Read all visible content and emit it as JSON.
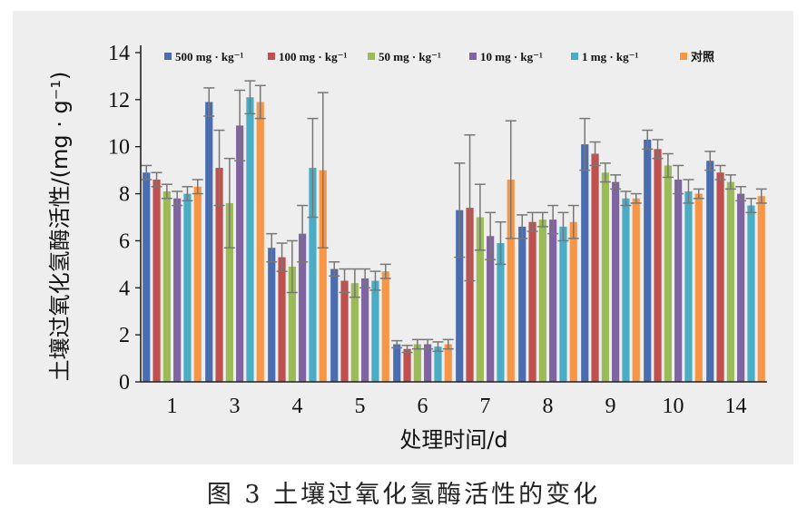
{
  "figure": {
    "caption": "图 3   土壤过氧化氢酶活性的变化"
  },
  "chart_data": {
    "type": "bar",
    "xlabel": "处理时间/d",
    "ylabel": "土壤过氧化氢酶活性/(mg · g⁻¹)",
    "ylim": [
      0,
      14
    ],
    "yticks": [
      0,
      2,
      4,
      6,
      8,
      10,
      12,
      14
    ],
    "categories": [
      "1",
      "3",
      "4",
      "5",
      "6",
      "7",
      "8",
      "9",
      "10",
      "14"
    ],
    "grid": false,
    "legend_position": "top",
    "error_bars": true,
    "series": [
      {
        "name": "500 mg · kg⁻¹",
        "color": "#4a6db0",
        "values": [
          8.9,
          11.9,
          5.7,
          4.8,
          1.6,
          7.3,
          6.6,
          10.1,
          10.3,
          9.4
        ],
        "errors": [
          0.3,
          0.6,
          0.6,
          0.3,
          0.15,
          2.0,
          0.5,
          1.1,
          0.4,
          0.4
        ]
      },
      {
        "name": "100 mg · kg⁻¹",
        "color": "#c0504d",
        "values": [
          8.6,
          9.1,
          5.3,
          4.3,
          1.4,
          7.4,
          6.8,
          9.7,
          9.9,
          8.9
        ],
        "errors": [
          0.3,
          1.6,
          0.6,
          0.5,
          0.15,
          3.1,
          0.4,
          0.5,
          0.4,
          0.3
        ]
      },
      {
        "name": "50 mg · kg⁻¹",
        "color": "#9bbb59",
        "values": [
          8.1,
          7.6,
          4.9,
          4.2,
          1.6,
          7.0,
          6.9,
          8.9,
          9.2,
          8.5
        ],
        "errors": [
          0.3,
          1.9,
          1.1,
          0.6,
          0.2,
          1.4,
          0.3,
          0.4,
          0.5,
          0.3
        ]
      },
      {
        "name": "10 mg · kg⁻¹",
        "color": "#8064a2",
        "values": [
          7.8,
          10.9,
          6.3,
          4.4,
          1.6,
          6.2,
          6.9,
          8.5,
          8.6,
          8.0
        ],
        "errors": [
          0.3,
          1.5,
          1.2,
          0.4,
          0.2,
          1.0,
          0.6,
          0.3,
          0.6,
          0.3
        ]
      },
      {
        "name": "1 mg · kg⁻¹",
        "color": "#4bacc6",
        "values": [
          8.0,
          12.1,
          9.1,
          4.3,
          1.5,
          5.9,
          6.6,
          7.8,
          8.1,
          7.5
        ],
        "errors": [
          0.3,
          0.7,
          2.1,
          0.4,
          0.2,
          0.9,
          0.6,
          0.3,
          0.5,
          0.3
        ]
      },
      {
        "name": "对照",
        "color": "#f79646",
        "values": [
          8.3,
          11.9,
          9.0,
          4.7,
          1.6,
          8.6,
          6.8,
          7.8,
          8.0,
          7.9
        ],
        "errors": [
          0.3,
          0.7,
          3.3,
          0.3,
          0.2,
          2.5,
          0.7,
          0.2,
          0.2,
          0.3
        ]
      }
    ]
  }
}
